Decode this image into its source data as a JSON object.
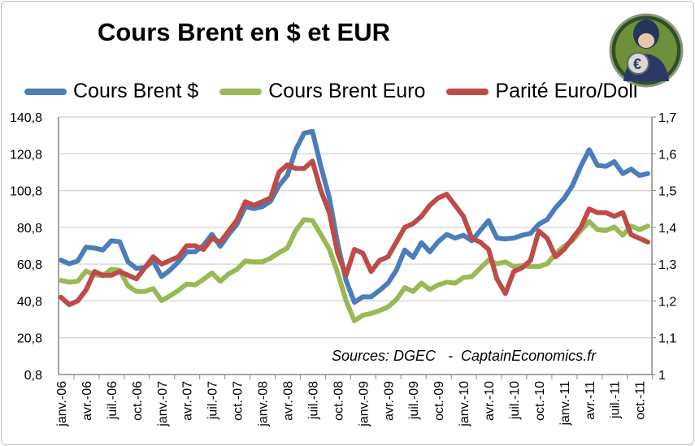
{
  "chart_data": {
    "type": "line",
    "title": "Cours Brent en $ et EUR",
    "source_note": "Sources: DGEC   -  CaptainEconomics.fr",
    "tick_labels": [
      "janv.-06",
      "avr.-06",
      "juil.-06",
      "oct.-06",
      "janv.-07",
      "avr.-07",
      "juil.-07",
      "oct.-07",
      "janv.-08",
      "avr.-08",
      "juil.-08",
      "oct.-08",
      "janv.-09",
      "avr.-09",
      "juil.-09",
      "oct.-09",
      "janv.-10",
      "avr.-10",
      "juil.-10",
      "oct.-10",
      "janv.-11",
      "avr.-11",
      "juil.-11",
      "oct.-11"
    ],
    "x_frequency": "monthly",
    "y_left": {
      "ticks": [
        "0,8",
        "20,8",
        "40,8",
        "60,8",
        "80,8",
        "100,8",
        "120,8",
        "140,8"
      ],
      "ylim": [
        0.8,
        140.8
      ]
    },
    "y_right": {
      "ticks": [
        "1",
        "1,1",
        "1,2",
        "1,3",
        "1,4",
        "1,5",
        "1,6",
        "1,7"
      ],
      "ylim": [
        1.0,
        1.7
      ]
    },
    "grid": true,
    "legend_placement": "top",
    "series": [
      {
        "name": "Cours Brent $",
        "axis": "left",
        "color": "#4a7ebb",
        "values": [
          63,
          61,
          62.5,
          70,
          69.5,
          68.5,
          73.5,
          73,
          62,
          58.5,
          59,
          62.5,
          54,
          57.5,
          62,
          67.5,
          67.5,
          71,
          77,
          70.5,
          77,
          82.5,
          92,
          91,
          92,
          95,
          103.5,
          109,
          123,
          132,
          133,
          114,
          97,
          72,
          52,
          40,
          43,
          43,
          46.5,
          50.5,
          57.5,
          68.5,
          64.5,
          72.5,
          67.5,
          73,
          77,
          75,
          76.5,
          73.5,
          79,
          84.5,
          75,
          74.5,
          75,
          76.5,
          77.5,
          82.5,
          85,
          91.5,
          96.5,
          103.5,
          114,
          123,
          114.5,
          114,
          116.5,
          110,
          112.5,
          109,
          110
        ]
      },
      {
        "name": "Cours Brent Euro",
        "axis": "left",
        "color": "#98b954",
        "values": [
          52,
          51,
          51.5,
          57,
          55,
          54.5,
          58,
          57.5,
          49,
          46,
          46,
          47.5,
          41,
          43.5,
          46.5,
          50,
          49.5,
          52.5,
          56,
          51.5,
          55.5,
          58,
          62.5,
          62,
          62,
          64,
          67,
          69.5,
          79,
          85,
          84.5,
          77,
          69,
          56,
          41,
          30,
          33,
          34,
          35.5,
          37.5,
          41.5,
          48,
          46,
          50.5,
          47,
          49.5,
          51,
          50.5,
          53.5,
          54,
          58.5,
          63,
          61,
          62,
          59.5,
          60,
          59.5,
          59.5,
          61,
          66.5,
          70.5,
          73.5,
          79,
          84,
          79.5,
          79,
          81,
          76.5,
          81.5,
          79.5,
          81.5
        ]
      },
      {
        "name": "Parité Euro/Doll",
        "axis": "right",
        "color": "#be4b48",
        "values": [
          1.21,
          1.19,
          1.2,
          1.23,
          1.28,
          1.27,
          1.27,
          1.28,
          1.27,
          1.26,
          1.29,
          1.32,
          1.3,
          1.31,
          1.32,
          1.35,
          1.35,
          1.34,
          1.37,
          1.36,
          1.39,
          1.42,
          1.47,
          1.46,
          1.47,
          1.48,
          1.55,
          1.57,
          1.56,
          1.56,
          1.58,
          1.5,
          1.44,
          1.33,
          1.27,
          1.34,
          1.33,
          1.28,
          1.31,
          1.32,
          1.36,
          1.4,
          1.41,
          1.43,
          1.46,
          1.48,
          1.49,
          1.46,
          1.43,
          1.37,
          1.36,
          1.34,
          1.26,
          1.22,
          1.28,
          1.29,
          1.31,
          1.39,
          1.37,
          1.32,
          1.34,
          1.37,
          1.4,
          1.45,
          1.44,
          1.44,
          1.43,
          1.44,
          1.38,
          1.37,
          1.36
        ]
      }
    ]
  },
  "logo": {
    "label": "CaptainEconomics",
    "icon": "captain-euro-avatar"
  }
}
